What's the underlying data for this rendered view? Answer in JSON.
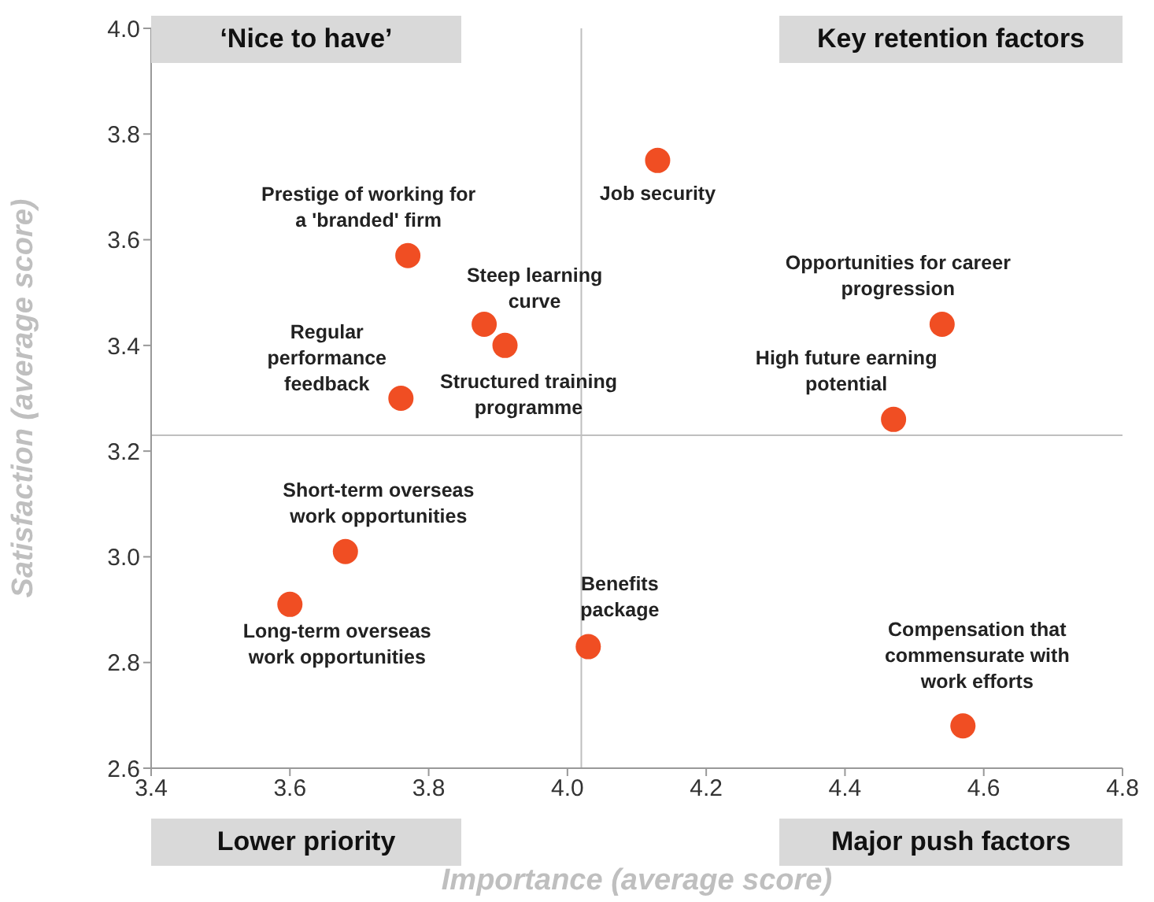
{
  "chart_data": {
    "type": "scatter",
    "xlabel": "Importance (average score)",
    "ylabel": "Satisfaction (average score)",
    "x": [
      4.13,
      3.77,
      3.88,
      3.91,
      3.76,
      4.54,
      4.47,
      3.68,
      3.6,
      4.03,
      4.57
    ],
    "values": [
      3.75,
      3.57,
      3.44,
      3.4,
      3.3,
      3.44,
      3.26,
      3.01,
      2.91,
      2.83,
      2.68
    ],
    "color": "#f04e23",
    "marker": "circle",
    "grid": false,
    "xlim": [
      3.4,
      4.8
    ],
    "xticks": [
      3.4,
      3.6,
      3.8,
      {
        "value": 4,
        "label": "4.0"
      },
      4.2,
      4.4,
      4.6,
      4.8
    ],
    "ylim": [
      2.6,
      4.0
    ],
    "yticks": [
      2.6,
      2.8,
      {
        "value": 3,
        "label": "3.0"
      },
      3.2,
      3.4,
      3.6,
      3.8,
      {
        "value": 4,
        "label": "4.0"
      }
    ],
    "ref_lines": [
      {
        "axis": "x",
        "value": 4.02,
        "color": "#bfbfbf"
      },
      {
        "axis": "y",
        "value": 3.23,
        "color": "#bfbfbf"
      }
    ],
    "annotations": [
      "‘Nice to have’",
      "Key retention factors",
      "Lower priority",
      "Major push factors",
      {
        "text": "Job security",
        "x": 4.13,
        "y": 3.75
      },
      {
        "text": "Prestige of working for\na 'branded' firm",
        "x": 3.77,
        "y": 3.57
      },
      {
        "text": "Steep learning\ncurve",
        "x": 3.88,
        "y": 3.44
      },
      {
        "text": "Structured training\nprogramme",
        "x": 3.91,
        "y": 3.4
      },
      {
        "text": "Regular\nperformance\nfeedback",
        "x": 3.76,
        "y": 3.3
      },
      {
        "text": "Opportunities for career\nprogression",
        "x": 4.54,
        "y": 3.44
      },
      {
        "text": "High future earning\npotential",
        "x": 4.47,
        "y": 3.26
      },
      {
        "text": "Short-term overseas\nwork opportunities",
        "x": 3.68,
        "y": 3.01
      },
      {
        "text": "Long-term overseas\nwork opportunities",
        "x": 3.6,
        "y": 2.91
      },
      {
        "text": "Benefits\npackage",
        "x": 4.03,
        "y": 2.83
      },
      {
        "text": "Compensation that\ncommensurate with\nwork efforts",
        "x": 4.57,
        "y": 2.68
      }
    ]
  }
}
